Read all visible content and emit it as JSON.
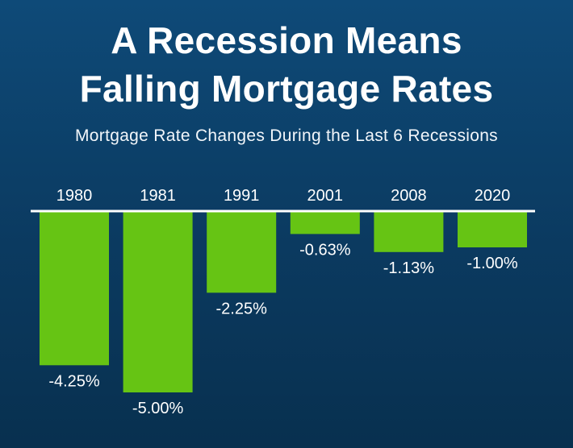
{
  "header": {
    "title_line1": "A Recession Means",
    "title_line2": "Falling Mortgage Rates",
    "subtitle": "Mortgage Rate Changes During the Last 6 Recessions"
  },
  "colors": {
    "background": "#0b3a60",
    "bar": "#66c414",
    "text": "#ffffff",
    "baseline": "#ffffff"
  },
  "chart_data": {
    "type": "bar",
    "title": "A Recession Means Falling Mortgage Rates",
    "subtitle": "Mortgage Rate Changes During the Last 6 Recessions",
    "categories": [
      "1980",
      "1981",
      "1991",
      "2001",
      "2008",
      "2020"
    ],
    "values": [
      -4.25,
      -5.0,
      -2.25,
      -0.63,
      -1.13,
      -1.0
    ],
    "value_labels": [
      "-4.25%",
      "-5.00%",
      "-2.25%",
      "-0.63%",
      "-1.13%",
      "-1.00%"
    ],
    "category_axis_position": "top",
    "ylim": [
      -5.0,
      0
    ],
    "grid": false,
    "legend": "none"
  }
}
